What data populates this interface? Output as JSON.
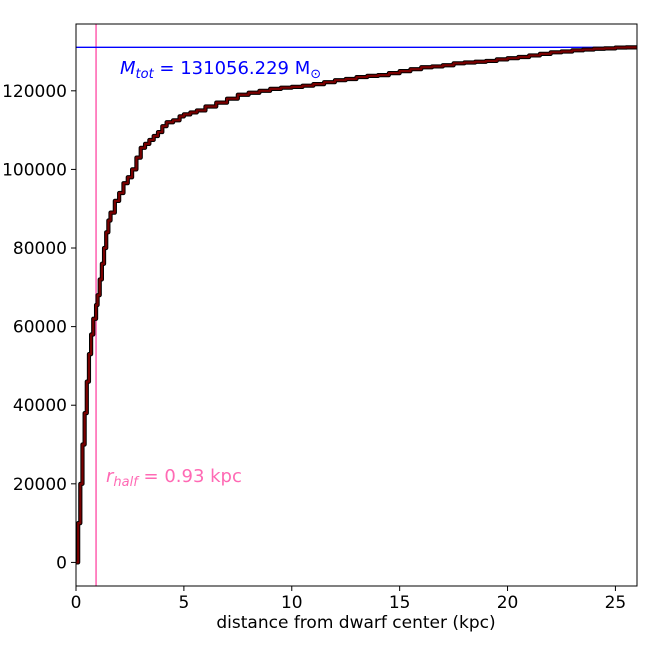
{
  "chart_data": {
    "type": "line",
    "title": "",
    "xlabel": "distance from dwarf center (kpc)",
    "ylabel": "",
    "xlim": [
      0,
      26
    ],
    "ylim": [
      -6000,
      137000
    ],
    "xticks": [
      0,
      5,
      10,
      15,
      20,
      25
    ],
    "yticks": [
      0,
      20000,
      40000,
      60000,
      80000,
      100000,
      120000
    ],
    "grid": false,
    "series": [
      {
        "color": "#7a0000",
        "x": [
          0,
          0.1,
          0.2,
          0.3,
          0.4,
          0.5,
          0.6,
          0.7,
          0.8,
          0.93,
          1.0,
          1.1,
          1.2,
          1.3,
          1.4,
          1.5,
          1.6,
          1.8,
          2.0,
          2.2,
          2.4,
          2.6,
          2.8,
          3.0,
          3.2,
          3.4,
          3.6,
          3.8,
          4.0,
          4.2,
          4.5,
          4.8,
          5.0,
          5.3,
          5.6,
          6.0,
          6.5,
          7.0,
          7.5,
          8.0,
          8.5,
          9.0,
          9.5,
          10.0,
          10.5,
          11.0,
          11.5,
          12.0,
          12.5,
          13.0,
          13.5,
          14.0,
          14.5,
          15.0,
          15.5,
          16.0,
          16.5,
          17.0,
          17.5,
          18.0,
          18.5,
          19.0,
          19.5,
          20.0,
          20.5,
          21.0,
          21.5,
          22.0,
          22.5,
          23.0,
          23.5,
          24.0,
          24.5,
          25.0,
          25.5,
          26.0
        ],
        "y": [
          0,
          10000,
          20000,
          30000,
          38000,
          46000,
          53000,
          58000,
          62000,
          65500,
          68000,
          72000,
          76000,
          80000,
          84000,
          87000,
          89000,
          92000,
          94000,
          96500,
          98000,
          100000,
          103000,
          105500,
          106500,
          107500,
          108500,
          109500,
          111000,
          112000,
          112500,
          113500,
          114000,
          114500,
          115000,
          116000,
          117000,
          118000,
          119000,
          119500,
          120000,
          120500,
          120800,
          121000,
          121300,
          121700,
          122200,
          122700,
          123000,
          123500,
          123800,
          124000,
          124500,
          125000,
          125500,
          126000,
          126200,
          126500,
          127000,
          127200,
          127400,
          127600,
          128000,
          128300,
          128600,
          129000,
          129400,
          129800,
          130000,
          130300,
          130500,
          130700,
          130800,
          131000,
          131050,
          131056
        ]
      }
    ],
    "reference_lines": {
      "horizontal": {
        "y": 131056.229,
        "color": "#0000ff"
      },
      "vertical": {
        "x": 0.93,
        "color": "#ff69b4"
      }
    },
    "annotations": {
      "mtot_text": "M",
      "mtot_sub": "tot",
      "mtot_value": " = 131056.229 M",
      "mtot_sun": "⊙",
      "rhalf_text": "r",
      "rhalf_sub": "half",
      "rhalf_value": " = 0.93 kpc"
    }
  }
}
